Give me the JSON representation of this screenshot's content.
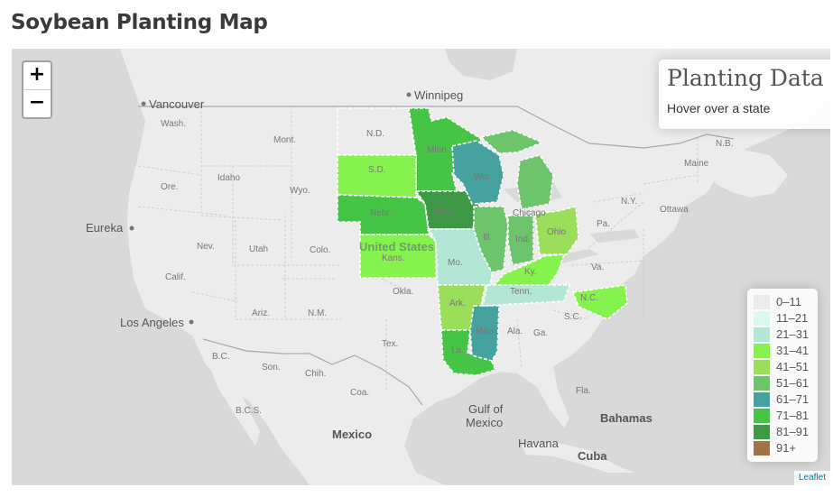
{
  "title": "Soybean Planting Map",
  "zoom": {
    "in_label": "+",
    "out_label": "−"
  },
  "info_panel": {
    "heading": "Planting Data",
    "hint": "Hover over a state"
  },
  "attribution": "Leaflet",
  "legend": [
    {
      "label": "0–11",
      "color": "#ececec"
    },
    {
      "label": "11–21",
      "color": "#d9f9f2"
    },
    {
      "label": "21–31",
      "color": "#b3e6d5"
    },
    {
      "label": "31–41",
      "color": "#86f24d"
    },
    {
      "label": "41–51",
      "color": "#9ade5a"
    },
    {
      "label": "51–61",
      "color": "#6dc46c"
    },
    {
      "label": "61–71",
      "color": "#45a29e"
    },
    {
      "label": "71–81",
      "color": "#46c446"
    },
    {
      "label": "81–91",
      "color": "#3e9845"
    },
    {
      "label": "91+",
      "color": "#a0724a"
    }
  ],
  "cities": [
    "Vancouver",
    "Winnipeg",
    "Eureka",
    "Los Angeles",
    "Mexico",
    "Havana",
    "Cuba",
    "Bahamas",
    "Gulf of",
    "Mexico"
  ],
  "country_label": "United States",
  "region_labels": [
    "Wash.",
    "Ore.",
    "Calif.",
    "Nev.",
    "Idaho",
    "Mont.",
    "Wyo.",
    "Utah",
    "Colo.",
    "Ariz.",
    "N.M.",
    "N.D.",
    "S.D.",
    "Nebr.",
    "Kans.",
    "Okla.",
    "Tex.",
    "Minn.",
    "Iowa",
    "Mo.",
    "Ark.",
    "La.",
    "Wis.",
    "Ill.",
    "Ind.",
    "Ohio",
    "Ky.",
    "Tenn.",
    "Miss.",
    "Ala.",
    "Ga.",
    "S.C.",
    "N.C.",
    "Va.",
    "Pa.",
    "N.Y.",
    "Maine",
    "N.B.",
    "Fla.",
    "Son.",
    "Chih.",
    "Coa.",
    "B.C.",
    "B.C.S.",
    "Chicago",
    "Ottawa"
  ],
  "states": [
    {
      "abbr": "N.D.",
      "bin": 0
    },
    {
      "abbr": "Minn.",
      "bin": 7
    },
    {
      "abbr": "S.D.",
      "bin": 3
    },
    {
      "abbr": "Nebr.",
      "bin": 7
    },
    {
      "abbr": "Kans.",
      "bin": 3
    },
    {
      "abbr": "Iowa",
      "bin": 8
    },
    {
      "abbr": "Mo.",
      "bin": 2
    },
    {
      "abbr": "Ark.",
      "bin": 4
    },
    {
      "abbr": "La.",
      "bin": 7
    },
    {
      "abbr": "Miss.",
      "bin": 6
    },
    {
      "abbr": "Wis.",
      "bin": 6
    },
    {
      "abbr": "Mich.",
      "bin": 5
    },
    {
      "abbr": "Ill.",
      "bin": 5
    },
    {
      "abbr": "Ind.",
      "bin": 5
    },
    {
      "abbr": "Ohio",
      "bin": 4
    },
    {
      "abbr": "Ky.",
      "bin": 3
    },
    {
      "abbr": "Tenn.",
      "bin": 2
    },
    {
      "abbr": "N.C.",
      "bin": 3
    }
  ]
}
